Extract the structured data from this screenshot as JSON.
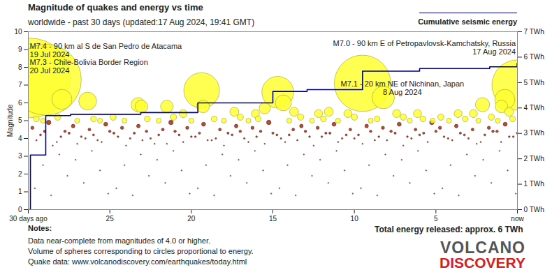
{
  "chart_data": {
    "type": "scatter",
    "title": "Magnitude of quakes and energy vs time",
    "subtitle": "worldwide - past 30 days (updated:17 Aug 2024, 19:41 GMT)",
    "ylabel": "Magnitude",
    "xlim": [
      30,
      0
    ],
    "xticks": [
      {
        "value": 30,
        "label": "30 days ago"
      },
      25,
      20,
      15,
      10,
      5,
      {
        "value": 0,
        "label": "now"
      }
    ],
    "ylim": [
      0,
      10
    ],
    "yticks": [
      0,
      1,
      2,
      3,
      4,
      5,
      6,
      7,
      8,
      9,
      10
    ],
    "y2lim": [
      0,
      7
    ],
    "y2ticks": [
      {
        "value": 0,
        "label": "0 TWh"
      },
      {
        "value": 1,
        "label": "1 TWh"
      },
      {
        "value": 2,
        "label": "2 TWh"
      },
      {
        "value": 3,
        "label": "3 TWh"
      },
      {
        "value": 4,
        "label": "4 TWh"
      },
      {
        "value": 5,
        "label": "5 TWh"
      },
      {
        "value": 6,
        "label": "6 TWh"
      },
      {
        "value": 7,
        "label": "7 TWh"
      }
    ],
    "grid": false,
    "legend": "top-right",
    "series": [
      {
        "color": "#b84a36",
        "marker": "circle",
        "x": [
          29.6,
          29.1,
          28.6,
          28.1,
          27.6,
          27.1,
          26.6,
          26.1,
          25.6,
          25.1,
          24.6,
          24.1,
          23.6,
          23.1,
          22.6,
          22.1,
          21.6,
          21.1,
          20.6,
          20.1,
          19.6,
          19.1,
          18.6,
          18.1,
          17.6,
          17.1,
          16.6,
          16.1,
          15.6,
          15.1,
          14.6,
          14.1,
          13.6,
          13.1,
          12.6,
          12.1,
          11.6,
          11.1,
          10.6,
          10.1,
          9.6,
          9.1,
          8.6,
          8.1,
          7.6,
          7.1,
          6.6,
          6.1,
          5.6,
          5.1,
          4.6,
          4.1,
          3.6,
          3.1,
          2.6,
          2.1,
          1.6,
          1.1,
          0.6,
          0.1
        ],
        "values": [
          1.2,
          2.5,
          0.8,
          3.1,
          1.9,
          2.8,
          1.5,
          3.3,
          2.2,
          0.9,
          1.2,
          2.5,
          0.8,
          3.1,
          1.9,
          2.8,
          1.5,
          3.3,
          2.2,
          0.9,
          1.2,
          2.5,
          0.8,
          3.1,
          1.9,
          2.8,
          1.5,
          3.3,
          2.2,
          0.9,
          1.2,
          2.5,
          0.8,
          3.1,
          1.9,
          2.8,
          1.5,
          3.3,
          2.2,
          0.9,
          1.2,
          2.5,
          0.8,
          3.1,
          1.9,
          2.8,
          1.5,
          3.3,
          2.2,
          0.9,
          1.2,
          2.5,
          0.8,
          3.1,
          1.9,
          2.8,
          1.5,
          3.3,
          2.2,
          0.9
        ]
      },
      {
        "color": "#a0301a",
        "marker": "circle",
        "x": [
          29.75,
          29.25,
          28.75,
          28.25,
          27.75,
          27.25,
          26.75,
          26.25,
          25.75,
          25.25,
          24.75,
          24.25,
          23.75,
          23.25,
          22.75,
          22.25,
          21.75,
          21.25,
          20.75,
          20.25,
          19.75,
          19.25,
          18.75,
          18.25,
          17.75,
          17.25,
          16.75,
          16.25,
          15.75,
          15.25,
          14.75,
          14.25,
          13.75,
          13.25,
          12.75,
          12.25,
          11.75,
          11.25,
          10.75,
          10.25,
          9.75,
          9.25,
          8.75,
          8.25,
          7.75,
          7.25,
          6.75,
          6.25,
          5.75,
          5.25,
          4.75,
          4.25,
          3.75,
          3.25,
          2.75,
          2.25,
          1.75,
          1.25,
          0.75,
          0.25,
          29.5,
          29.0,
          28.5,
          28.0,
          27.5,
          27.0,
          26.5,
          26.0,
          25.5,
          25.0,
          24.5,
          24.0,
          23.5,
          23.0,
          22.5,
          22.0,
          21.5,
          21.0,
          20.5,
          20.0,
          19.5,
          19.0,
          18.5,
          18.0,
          17.5,
          17.0,
          16.5,
          16.0,
          15.5,
          15.0,
          14.5,
          14.0,
          13.5,
          13.0,
          12.5,
          12.0,
          11.5,
          11.0,
          10.5,
          10.0,
          9.5,
          9.0,
          8.5,
          8.0,
          7.5,
          7.0,
          6.5,
          6.0,
          5.5,
          5.0,
          4.5,
          4.0,
          3.5,
          3.0,
          2.5,
          2.0,
          1.5,
          1.0,
          0.5,
          0.0
        ],
        "values": [
          4.6,
          4.2,
          4.9,
          3.8,
          4.4,
          4.7,
          4.1,
          4.5,
          3.9,
          4.8,
          4.3,
          4.6,
          4.0,
          4.7,
          4.4,
          3.7,
          4.5,
          4.9,
          4.2,
          4.6,
          4.1,
          4.8,
          3.9,
          4.5,
          4.3,
          4.7,
          4.0,
          4.6,
          4.4,
          4.9,
          4.2,
          3.8,
          4.5,
          4.7,
          4.1,
          4.6,
          4.3,
          4.8,
          4.0,
          4.5,
          4.2,
          4.7,
          3.9,
          4.6,
          4.4,
          4.8,
          4.1,
          4.5,
          4.3,
          4.9,
          4.6,
          4.0,
          4.7,
          4.2,
          4.5,
          3.8,
          4.6,
          4.4,
          4.8,
          4.1,
          3.9,
          4.4,
          3.6,
          4.1,
          4.3,
          3.7,
          4.0,
          4.2,
          3.8,
          4.4,
          4.1,
          3.6,
          4.3,
          3.9,
          4.0,
          4.2,
          3.7,
          4.4,
          3.8,
          4.1,
          4.3,
          3.9,
          4.0,
          3.6,
          4.2,
          4.4,
          3.8,
          4.1,
          3.7,
          4.3,
          4.0,
          4.2,
          3.9,
          4.4,
          3.6,
          4.1,
          4.3,
          3.8,
          4.2,
          4.0,
          3.7,
          4.4,
          4.1,
          3.9,
          4.3,
          3.6,
          4.0,
          4.2,
          3.8,
          4.4,
          4.1,
          3.9,
          4.3,
          4.0,
          3.7,
          4.2,
          4.4,
          3.8,
          4.1,
          4.3
        ]
      },
      {
        "color": "#ffff33",
        "marker": "circle",
        "x": [
          29.5,
          29.1,
          28.2,
          27.0,
          26.0,
          25.6,
          24.8,
          24.1,
          22.7,
          22.0,
          21.1,
          20.0,
          18.6,
          18.0,
          17.0,
          16.5,
          15.9,
          14.0,
          13.3,
          12.6,
          11.9,
          11.0,
          10.0,
          9.0,
          8.6,
          7.0,
          6.6,
          5.8,
          5.2,
          4.7,
          4.2,
          3.2,
          2.4,
          1.6,
          1.2,
          0.3,
          29.87,
          28.93,
          27.94,
          26.36,
          23.27,
          23.06,
          21.5,
          20.5,
          19.37,
          19.28,
          17.36,
          16.07,
          15.5,
          14.7,
          14.36,
          13.7,
          12.2,
          11.57,
          10.4,
          9.5,
          8.23,
          7.41,
          6.13,
          3.64,
          2.7,
          2.14,
          0.98,
          0.77,
          0.51,
          0.02
        ],
        "values": [
          5.1,
          5.0,
          5.2,
          5.0,
          5.1,
          5.0,
          5.2,
          5.0,
          5.1,
          5.0,
          5.2,
          5.0,
          5.1,
          5.0,
          5.2,
          5.0,
          5.1,
          5.0,
          5.2,
          5.0,
          5.1,
          5.0,
          5.2,
          5.0,
          5.1,
          5.2,
          5.0,
          5.1,
          5.0,
          5.2,
          5.0,
          5.1,
          5.0,
          5.2,
          5.0,
          5.1,
          7.4,
          7.3,
          6.2,
          6.1,
          5.9,
          5.8,
          5.8,
          5.4,
          6.7,
          5.8,
          5.5,
          5.4,
          5.7,
          6.6,
          6.0,
          5.5,
          5.4,
          5.5,
          5.4,
          7.1,
          6.3,
          5.4,
          5.4,
          5.4,
          5.4,
          5.9,
          5.8,
          6.2,
          5.5,
          7.0
        ]
      },
      {
        "name": "Cumulative seismic energy",
        "type": "line",
        "line_style": "step",
        "axis": "y2",
        "color": "#00008b",
        "x": [
          30,
          29.87,
          28.93,
          27.4,
          23.1,
          19.6,
          15.0,
          12.9,
          9.5,
          6.0,
          1.7,
          0.02,
          0
        ],
        "values": [
          0,
          2.15,
          3.7,
          3.75,
          3.82,
          4.2,
          4.65,
          4.72,
          5.45,
          5.55,
          5.62,
          5.75,
          5.75
        ]
      }
    ],
    "annotations": [
      {
        "text": "M7.4 - 90 km al S de San Pedro de Atacama",
        "date": "19 Jul 2024",
        "x": 29.87,
        "y": 7.4
      },
      {
        "text": "M7.3 - Chile-Bolivia Border Region",
        "date": "20 Jul 2024",
        "x": 28.93,
        "y": 7.3
      },
      {
        "text": "M7.1 - 20 km NE of Nichinan, Japan",
        "date": "8 Aug 2024",
        "x": 9.5,
        "y": 7.1
      },
      {
        "text": "M7.0 - 90 km E of Petropavlovsk-Kamchatsky, Russia",
        "date": "17 Aug 2024",
        "x": 0.02,
        "y": 7.0
      }
    ],
    "notes": {
      "title": "Notes:",
      "lines": [
        "Data near-complete from magnitudes of 4.0 or higher.",
        "Volume of spheres corresponding to circles proportional to energy.",
        "Quake data: www.volcanodiscovery.com/earthquakes/today.html"
      ]
    },
    "total": "Total energy released: approx. 6 TWh",
    "logo": [
      "VOLCANO",
      "DISCOVERY"
    ]
  }
}
